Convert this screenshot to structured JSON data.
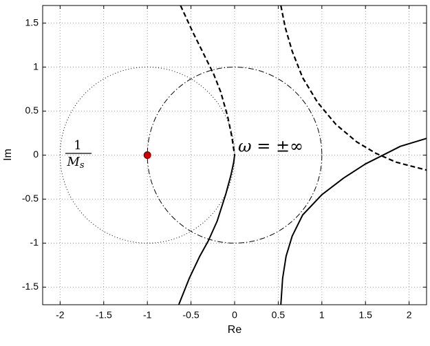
{
  "chart_data": {
    "type": "line",
    "xlabel": "Re",
    "ylabel": "Im",
    "xlim": [
      -2.2,
      2.2
    ],
    "ylim": [
      -1.7,
      1.7
    ],
    "xticks": [
      -2,
      -1.5,
      -1,
      -0.5,
      0,
      0.5,
      1,
      1.5,
      2
    ],
    "yticks": [
      -1.5,
      -1,
      -0.5,
      0,
      0.5,
      1,
      1.5
    ],
    "grid": true,
    "series": [
      {
        "color": "#000000",
        "dash": "solid",
        "x": [
          -0.64,
          -0.52,
          -0.4,
          -0.3,
          -0.2,
          -0.1,
          -0.04,
          -0.01,
          0
        ],
        "y": [
          -1.7,
          -1.4,
          -1.15,
          -0.97,
          -0.75,
          -0.44,
          -0.22,
          -0.08,
          0
        ]
      },
      {
        "color": "#000000",
        "dash": "dashed",
        "x": [
          -0.62,
          -0.48,
          -0.34,
          -0.24,
          -0.16,
          -0.08,
          -0.03,
          0
        ],
        "y": [
          1.7,
          1.4,
          1.12,
          0.92,
          0.72,
          0.44,
          0.2,
          0
        ]
      },
      {
        "color": "#000000",
        "dash": "solid",
        "x": [
          0.53,
          0.55,
          0.59,
          0.66,
          0.78,
          1.0,
          1.25,
          1.5,
          1.68,
          1.9,
          2.2
        ],
        "y": [
          -1.7,
          -1.4,
          -1.15,
          -0.92,
          -0.68,
          -0.45,
          -0.26,
          -0.1,
          -0.01,
          0.1,
          0.19
        ]
      },
      {
        "color": "#000000",
        "dash": "dashed",
        "x": [
          0.53,
          0.58,
          0.66,
          0.78,
          0.95,
          1.16,
          1.4,
          1.62,
          1.85,
          2.2
        ],
        "y": [
          1.7,
          1.45,
          1.18,
          0.88,
          0.6,
          0.35,
          0.15,
          0.02,
          -0.08,
          -0.17
        ]
      }
    ],
    "circles": [
      {
        "center": [
          0,
          0
        ],
        "radius": 1,
        "color": "#000000",
        "dash": "dashdot"
      },
      {
        "center": [
          -1,
          0
        ],
        "radius": 1,
        "color": "#000000",
        "dash": "dotted"
      }
    ],
    "points": [
      {
        "x": -1,
        "y": 0,
        "color": "#cc0000"
      }
    ],
    "annotations": {
      "omega": "ω = ±∞",
      "numerator": "1",
      "denominator": "M",
      "subscript": "s"
    }
  }
}
